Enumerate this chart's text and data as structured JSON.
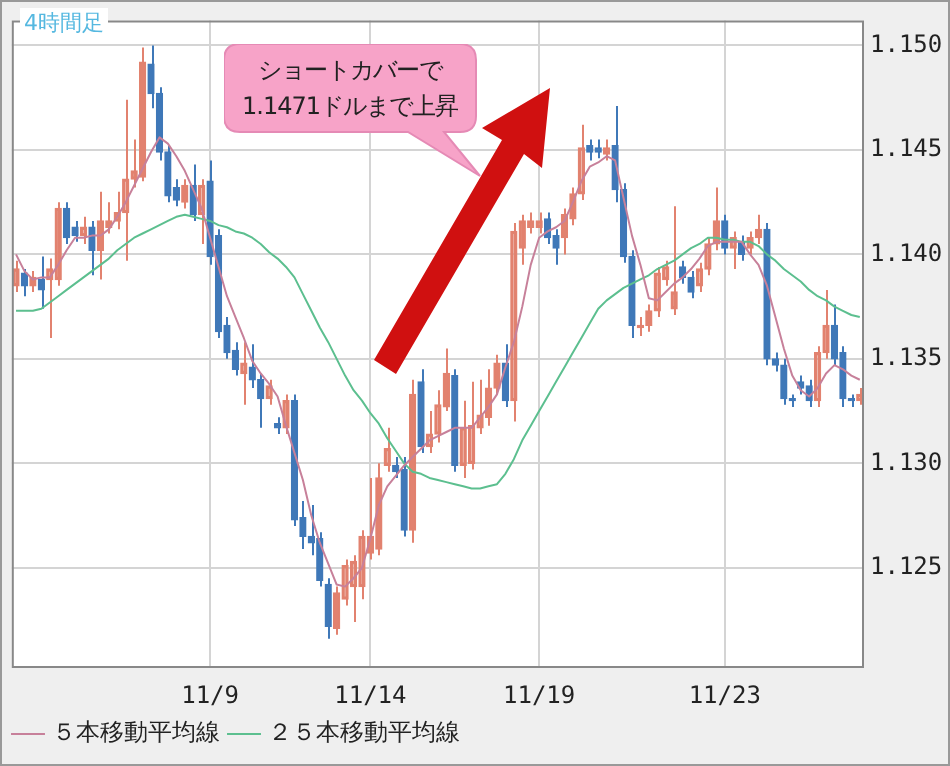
{
  "chart_data": {
    "type": "candlestick",
    "categories": [
      null,
      null,
      null,
      null,
      null,
      null,
      null,
      null,
      null,
      null,
      null,
      null,
      null,
      null,
      null,
      null,
      null,
      null,
      null,
      null,
      null,
      null,
      null,
      "11/9",
      null,
      null,
      null,
      null,
      null,
      null,
      null,
      null,
      null,
      null,
      null,
      null,
      null,
      null,
      null,
      null,
      null,
      null,
      "11/14",
      null,
      null,
      null,
      null,
      null,
      null,
      null,
      null,
      null,
      null,
      null,
      null,
      null,
      null,
      null,
      null,
      null,
      null,
      null,
      "11/19",
      null,
      null,
      null,
      null,
      null,
      null,
      null,
      null,
      null,
      null,
      null,
      null,
      null,
      null,
      null,
      null,
      null,
      null,
      null,
      null,
      null,
      "11/23",
      null,
      null,
      null,
      null,
      null,
      null,
      null,
      null,
      null,
      null,
      null,
      null,
      null,
      null,
      null,
      null
    ],
    "ohlc": [
      [
        1.1385,
        1.1397,
        1.1382,
        1.1393
      ],
      [
        1.1391,
        1.1393,
        1.138,
        1.1385
      ],
      [
        1.1385,
        1.1392,
        1.1382,
        1.1389
      ],
      [
        1.1388,
        1.1399,
        1.1374,
        1.1383
      ],
      [
        1.1388,
        1.1398,
        1.136,
        1.1393
      ],
      [
        1.1388,
        1.1425,
        1.1385,
        1.1422
      ],
      [
        1.1422,
        1.1425,
        1.1405,
        1.1408
      ],
      [
        1.1413,
        1.1416,
        1.1406,
        1.1409
      ],
      [
        1.1409,
        1.1418,
        1.1405,
        1.1413
      ],
      [
        1.1413,
        1.1416,
        1.139,
        1.1402
      ],
      [
        1.1402,
        1.143,
        1.1388,
        1.1416
      ],
      [
        1.1413,
        1.1425,
        1.141,
        1.1416
      ],
      [
        1.1416,
        1.143,
        1.1412,
        1.142
      ],
      [
        1.142,
        1.1474,
        1.1397,
        1.1436
      ],
      [
        1.1436,
        1.1455,
        1.1432,
        1.144
      ],
      [
        1.1437,
        1.1499,
        1.1435,
        1.1492
      ],
      [
        1.1491,
        1.15,
        1.147,
        1.1477
      ],
      [
        1.1477,
        1.148,
        1.1445,
        1.1449
      ],
      [
        1.1449,
        1.1452,
        1.1425,
        1.1428
      ],
      [
        1.1432,
        1.1436,
        1.1423,
        1.1426
      ],
      [
        1.1425,
        1.1436,
        1.1422,
        1.1433
      ],
      [
        1.1433,
        1.1443,
        1.1416,
        1.1419
      ],
      [
        1.1419,
        1.1436,
        1.1405,
        1.1433
      ],
      [
        1.1435,
        1.1445,
        1.1395,
        1.1399
      ],
      [
        1.1409,
        1.1412,
        1.136,
        1.1363
      ],
      [
        1.1366,
        1.137,
        1.135,
        1.1353
      ],
      [
        1.1354,
        1.1358,
        1.1342,
        1.1345
      ],
      [
        1.1343,
        1.1358,
        1.1328,
        1.1348
      ],
      [
        1.1346,
        1.1357,
        1.1336,
        1.134
      ],
      [
        1.134,
        1.1343,
        1.1317,
        1.1331
      ],
      [
        1.1331,
        1.134,
        1.1328,
        1.1337
      ],
      [
        1.1319,
        1.1322,
        1.1314,
        1.1317
      ],
      [
        1.1317,
        1.1333,
        1.1314,
        1.133
      ],
      [
        1.133,
        1.1333,
        1.127,
        1.1273
      ],
      [
        1.1274,
        1.1282,
        1.1259,
        1.1265
      ],
      [
        1.1265,
        1.128,
        1.1256,
        1.1262
      ],
      [
        1.1264,
        1.1267,
        1.1241,
        1.1244
      ],
      [
        1.1242,
        1.1245,
        1.1216,
        1.1222
      ],
      [
        1.1221,
        1.1241,
        1.1218,
        1.1238
      ],
      [
        1.1235,
        1.1254,
        1.1232,
        1.1251
      ],
      [
        1.1241,
        1.1256,
        1.1224,
        1.1253
      ],
      [
        1.1241,
        1.1268,
        1.1235,
        1.1265
      ],
      [
        1.1257,
        1.1293,
        1.1254,
        1.1265
      ],
      [
        1.1259,
        1.13,
        1.1256,
        1.1293
      ],
      [
        1.1299,
        1.1317,
        1.1296,
        1.1307
      ],
      [
        1.1299,
        1.1303,
        1.1293,
        1.1296
      ],
      [
        1.1297,
        1.1303,
        1.1265,
        1.1268
      ],
      [
        1.1268,
        1.134,
        1.1262,
        1.1333
      ],
      [
        1.1339,
        1.1345,
        1.1305,
        1.1308
      ],
      [
        1.1308,
        1.1325,
        1.1305,
        1.1314
      ],
      [
        1.1314,
        1.1335,
        1.131,
        1.1328
      ],
      [
        1.1327,
        1.1355,
        1.1325,
        1.1343
      ],
      [
        1.1342,
        1.1345,
        1.1296,
        1.1299
      ],
      [
        1.1299,
        1.133,
        1.1293,
        1.1317
      ],
      [
        1.13,
        1.1339,
        1.1297,
        1.1318
      ],
      [
        1.1317,
        1.134,
        1.1314,
        1.1323
      ],
      [
        1.1322,
        1.1345,
        1.1318,
        1.1336
      ],
      [
        1.1336,
        1.1352,
        1.1333,
        1.1348
      ],
      [
        1.1348,
        1.1357,
        1.1327,
        1.133
      ],
      [
        1.133,
        1.1415,
        1.132,
        1.1411
      ],
      [
        1.1403,
        1.1419,
        1.1395,
        1.1416
      ],
      [
        1.1413,
        1.142,
        1.141,
        1.1416
      ],
      [
        1.1413,
        1.142,
        1.141,
        1.1416
      ],
      [
        1.1417,
        1.142,
        1.1405,
        1.1408
      ],
      [
        1.1409,
        1.1412,
        1.1395,
        1.1403
      ],
      [
        1.1408,
        1.1422,
        1.14,
        1.1419
      ],
      [
        1.1417,
        1.1432,
        1.1414,
        1.1429
      ],
      [
        1.1429,
        1.1462,
        1.1426,
        1.1451
      ],
      [
        1.1452,
        1.1455,
        1.1445,
        1.1449
      ],
      [
        1.1451,
        1.1455,
        1.1446,
        1.1449
      ],
      [
        1.1448,
        1.1455,
        1.1445,
        1.1451
      ],
      [
        1.1452,
        1.1471,
        1.1425,
        1.1431
      ],
      [
        1.1431,
        1.1434,
        1.1396,
        1.1399
      ],
      [
        1.1399,
        1.1402,
        1.136,
        1.1366
      ],
      [
        1.1365,
        1.137,
        1.1361,
        1.1366
      ],
      [
        1.1366,
        1.1376,
        1.1363,
        1.1373
      ],
      [
        1.1373,
        1.1394,
        1.137,
        1.1391
      ],
      [
        1.1388,
        1.1397,
        1.1385,
        1.1394
      ],
      [
        1.1374,
        1.1423,
        1.1371,
        1.1382
      ],
      [
        1.1394,
        1.1397,
        1.1386,
        1.1389
      ],
      [
        1.1389,
        1.1392,
        1.1379,
        1.1382
      ],
      [
        1.1385,
        1.1396,
        1.1382,
        1.1393
      ],
      [
        1.1393,
        1.1408,
        1.139,
        1.1405
      ],
      [
        1.1405,
        1.1432,
        1.1402,
        1.1416
      ],
      [
        1.1416,
        1.1419,
        1.14,
        1.1403
      ],
      [
        1.1403,
        1.1411,
        1.1393,
        1.1408
      ],
      [
        1.1406,
        1.1409,
        1.1397,
        1.14
      ],
      [
        1.1403,
        1.1411,
        1.14,
        1.1408
      ],
      [
        1.1408,
        1.1419,
        1.1405,
        1.1412
      ],
      [
        1.1412,
        1.1415,
        1.1347,
        1.135
      ],
      [
        1.135,
        1.1353,
        1.1344,
        1.1347
      ],
      [
        1.1347,
        1.135,
        1.1328,
        1.1331
      ],
      [
        1.1331,
        1.1333,
        1.1327,
        1.133
      ],
      [
        1.1339,
        1.1342,
        1.1333,
        1.1336
      ],
      [
        1.1337,
        1.134,
        1.1327,
        1.133
      ],
      [
        1.133,
        1.1356,
        1.1327,
        1.1353
      ],
      [
        1.1353,
        1.1383,
        1.135,
        1.1366
      ],
      [
        1.1366,
        1.1376,
        1.1347,
        1.135
      ],
      [
        1.1353,
        1.1356,
        1.1327,
        1.1331
      ],
      [
        1.1331,
        1.1333,
        1.1327,
        1.133
      ],
      [
        1.133,
        1.1336,
        1.1328,
        1.1333
      ]
    ],
    "colors": [
      "#e2826f",
      "#3f78b8",
      "#e2826f",
      "#3f78b8",
      "#e2826f",
      "#e2826f",
      "#3f78b8",
      "#3f78b8",
      "#e2826f",
      "#3f78b8",
      "#e2826f",
      "#e2826f",
      "#e2826f",
      "#e2826f",
      "#e2826f",
      "#e2826f",
      "#3f78b8",
      "#3f78b8",
      "#3f78b8",
      "#3f78b8",
      "#e2826f",
      "#3f78b8",
      "#e2826f",
      "#3f78b8",
      "#3f78b8",
      "#3f78b8",
      "#3f78b8",
      "#e2826f",
      "#3f78b8",
      "#3f78b8",
      "#e2826f",
      "#3f78b8",
      "#e2826f",
      "#3f78b8",
      "#3f78b8",
      "#3f78b8",
      "#3f78b8",
      "#3f78b8",
      "#e2826f",
      "#e2826f",
      "#e2826f",
      "#e2826f",
      "#e2826f",
      "#e2826f",
      "#e2826f",
      "#3f78b8",
      "#3f78b8",
      "#e2826f",
      "#3f78b8",
      "#e2826f",
      "#e2826f",
      "#e2826f",
      "#3f78b8",
      "#e2826f",
      "#e2826f",
      "#e2826f",
      "#e2826f",
      "#e2826f",
      "#3f78b8",
      "#e2826f",
      "#e2826f",
      "#e2826f",
      "#e2826f",
      "#3f78b8",
      "#3f78b8",
      "#e2826f",
      "#e2826f",
      "#e2826f",
      "#3f78b8",
      "#3f78b8",
      "#e2826f",
      "#3f78b8",
      "#3f78b8",
      "#3f78b8",
      "#e2826f",
      "#e2826f",
      "#e2826f",
      "#e2826f",
      "#e2826f",
      "#3f78b8",
      "#3f78b8",
      "#e2826f",
      "#e2826f",
      "#e2826f",
      "#3f78b8",
      "#e2826f",
      "#3f78b8",
      "#e2826f",
      "#e2826f",
      "#3f78b8",
      "#3f78b8",
      "#3f78b8",
      "#3f78b8",
      "#3f78b8",
      "#3f78b8",
      "#e2826f",
      "#e2826f",
      "#3f78b8",
      "#3f78b8",
      "#3f78b8",
      "#e2826f"
    ],
    "series": [
      {
        "name": "５本移動平均線",
        "type": "line",
        "color": "#c7809a",
        "values": [
          1.14,
          1.1392,
          1.1388,
          1.1389,
          1.1389,
          1.1395,
          1.1402,
          1.1408,
          1.1408,
          1.1409,
          1.1409,
          1.1412,
          1.1418,
          1.1425,
          1.1433,
          1.1441,
          1.1449,
          1.1456,
          1.1453,
          1.1447,
          1.144,
          1.1431,
          1.1422,
          1.1408,
          1.1394,
          1.138,
          1.137,
          1.136,
          1.1349,
          1.1343,
          1.1338,
          1.1332,
          1.1318,
          1.1305,
          1.1292,
          1.1275,
          1.1262,
          1.1252,
          1.1242,
          1.1241,
          1.1245,
          1.125,
          1.1264,
          1.128,
          1.1289,
          1.1294,
          1.1299,
          1.1303,
          1.1307,
          1.1311,
          1.1313,
          1.1315,
          1.1317,
          1.1317,
          1.1317,
          1.1322,
          1.1327,
          1.1333,
          1.1346,
          1.1358,
          1.1375,
          1.1395,
          1.1408,
          1.1411,
          1.1413,
          1.1416,
          1.1425,
          1.1435,
          1.1442,
          1.1444,
          1.1447,
          1.1445,
          1.1427,
          1.1409,
          1.1395,
          1.1379,
          1.1378,
          1.1382,
          1.1386,
          1.1389,
          1.1393,
          1.1398,
          1.1404,
          1.1406,
          1.1406,
          1.1406,
          1.1406,
          1.14,
          1.1395,
          1.1385,
          1.137,
          1.1355,
          1.1342,
          1.1335,
          1.1332,
          1.1336,
          1.1343,
          1.1347,
          1.1345,
          1.1342,
          1.134
        ]
      },
      {
        "name": "２５本移動平均線",
        "type": "line",
        "color": "#5cbf8f",
        "values": [
          1.1373,
          1.1373,
          1.1373,
          1.1374,
          1.1377,
          1.138,
          1.1383,
          1.1386,
          1.1389,
          1.1392,
          1.1395,
          1.1398,
          1.1402,
          1.1405,
          1.1408,
          1.141,
          1.1412,
          1.1414,
          1.1416,
          1.1418,
          1.1419,
          1.1418,
          1.1417,
          1.1416,
          1.1414,
          1.1413,
          1.1411,
          1.141,
          1.1408,
          1.1405,
          1.1401,
          1.1398,
          1.1394,
          1.1389,
          1.1381,
          1.1373,
          1.1365,
          1.1358,
          1.135,
          1.1342,
          1.1335,
          1.133,
          1.1324,
          1.1319,
          1.1312,
          1.1306,
          1.13,
          1.1296,
          1.1295,
          1.1293,
          1.1292,
          1.1291,
          1.129,
          1.1289,
          1.1288,
          1.1288,
          1.1289,
          1.129,
          1.1295,
          1.1302,
          1.1311,
          1.1318,
          1.1325,
          1.1332,
          1.1339,
          1.1346,
          1.1353,
          1.136,
          1.1367,
          1.1374,
          1.1378,
          1.1381,
          1.1384,
          1.1386,
          1.1388,
          1.139,
          1.1393,
          1.1395,
          1.1397,
          1.14,
          1.1403,
          1.1405,
          1.1408,
          1.1408,
          1.1407,
          1.1407,
          1.1406,
          1.1406,
          1.1404,
          1.14,
          1.1397,
          1.1393,
          1.139,
          1.1387,
          1.1383,
          1.138,
          1.1378,
          1.1375,
          1.1373,
          1.1371,
          1.137
        ]
      }
    ],
    "ylim": [
      1.1203,
      1.1512
    ],
    "yticks": [
      {
        "value": 1.125,
        "label": "1.125"
      },
      {
        "value": 1.13,
        "label": "1.130"
      },
      {
        "value": 1.135,
        "label": "1.135"
      },
      {
        "value": 1.14,
        "label": "1.140"
      },
      {
        "value": 1.145,
        "label": "1.145"
      },
      {
        "value": 1.15,
        "label": "1.150"
      }
    ],
    "grid": true,
    "legend": "bottom",
    "marker": "none",
    "line_style": "solid",
    "annotations": [
      "4時間足",
      "ショートカバーで\n1.1471ドルまで上昇"
    ]
  }
}
